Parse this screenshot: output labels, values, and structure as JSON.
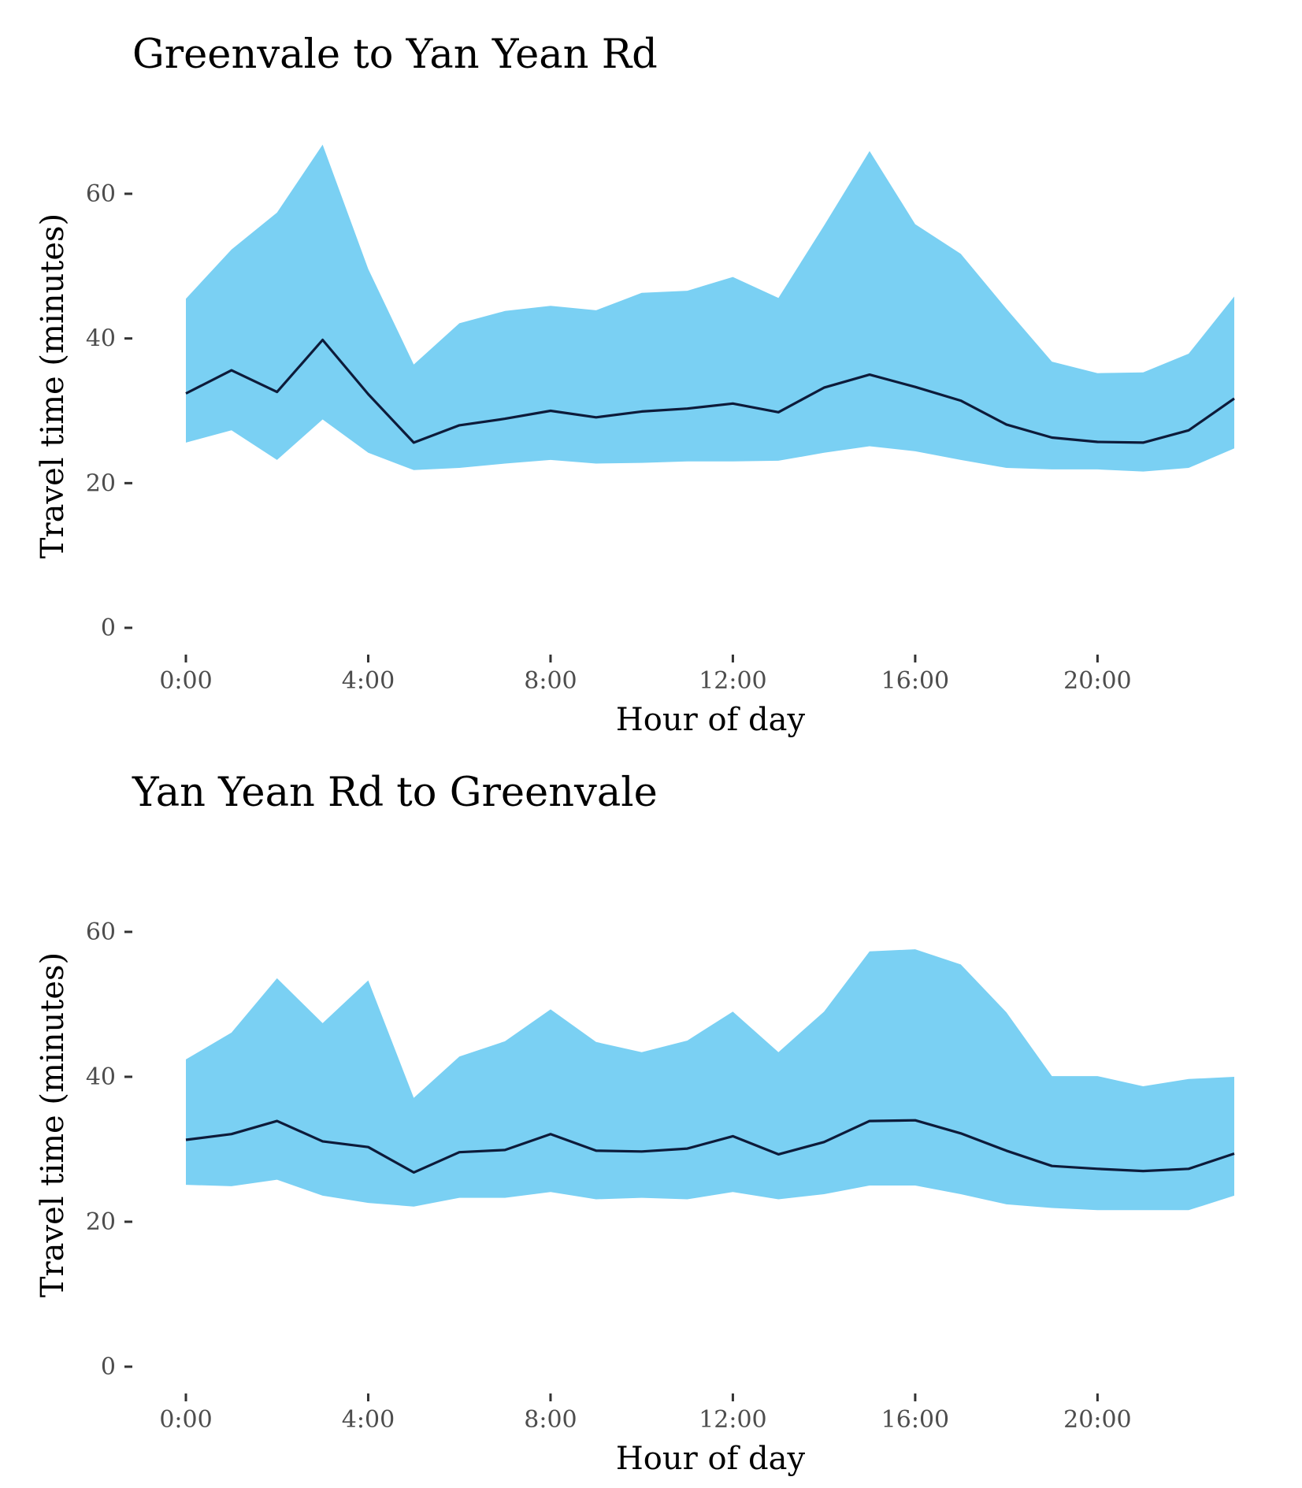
{
  "colors": {
    "band": "#7ad0f3",
    "line": "#0d1b3a",
    "tick_label": "#4d4d4d"
  },
  "chart_data": [
    {
      "type": "area",
      "title": "Greenvale to Yan Yean Rd",
      "xlabel": "Hour of day",
      "ylabel": "Travel time (minutes)",
      "xlim": [
        0,
        23
      ],
      "ylim": [
        0,
        70
      ],
      "x_ticks": [
        0,
        4,
        8,
        12,
        16,
        20
      ],
      "x_tick_labels": [
        "0:00",
        "4:00",
        "8:00",
        "12:00",
        "16:00",
        "20:00"
      ],
      "y_ticks": [
        0,
        20,
        40,
        60
      ],
      "y_tick_labels": [
        "0",
        "20",
        "40",
        "60"
      ],
      "grid": false,
      "x": [
        0,
        1,
        2,
        3,
        4,
        5,
        6,
        7,
        8,
        9,
        10,
        11,
        12,
        13,
        14,
        15,
        16,
        17,
        18,
        19,
        20,
        21,
        22,
        23
      ],
      "series": [
        {
          "role": "upper",
          "values": [
            45.5,
            52.3,
            57.4,
            66.8,
            49.6,
            36.4,
            42.1,
            43.8,
            44.5,
            43.9,
            46.3,
            46.6,
            48.5,
            45.6,
            55.6,
            65.9,
            55.8,
            51.7,
            44.1,
            36.8,
            35.2,
            35.3,
            37.9,
            45.8
          ]
        },
        {
          "role": "median",
          "values": [
            32.4,
            35.6,
            32.6,
            39.8,
            32.3,
            25.6,
            28.0,
            28.9,
            30.0,
            29.1,
            29.9,
            30.3,
            31.0,
            29.8,
            33.2,
            35.0,
            33.3,
            31.4,
            28.1,
            26.3,
            25.7,
            25.6,
            27.3,
            31.7
          ]
        },
        {
          "role": "lower",
          "values": [
            25.6,
            27.3,
            23.2,
            28.8,
            24.2,
            21.8,
            22.1,
            22.7,
            23.2,
            22.7,
            22.8,
            23.0,
            23.0,
            23.1,
            24.2,
            25.1,
            24.4,
            23.2,
            22.1,
            21.9,
            21.9,
            21.6,
            22.1,
            24.8
          ]
        }
      ]
    },
    {
      "type": "area",
      "title": "Yan Yean Rd to Greenvale",
      "xlabel": "Hour of day",
      "ylabel": "Travel time (minutes)",
      "xlim": [
        0,
        23
      ],
      "ylim": [
        0,
        70
      ],
      "x_ticks": [
        0,
        4,
        8,
        12,
        16,
        20
      ],
      "x_tick_labels": [
        "0:00",
        "4:00",
        "8:00",
        "12:00",
        "16:00",
        "20:00"
      ],
      "y_ticks": [
        0,
        20,
        40,
        60
      ],
      "y_tick_labels": [
        "0",
        "20",
        "40",
        "60"
      ],
      "grid": false,
      "x": [
        0,
        1,
        2,
        3,
        4,
        5,
        6,
        7,
        8,
        9,
        10,
        11,
        12,
        13,
        14,
        15,
        16,
        17,
        18,
        19,
        20,
        21,
        22,
        23
      ],
      "series": [
        {
          "role": "upper",
          "values": [
            42.4,
            46.1,
            53.6,
            47.4,
            53.3,
            37.1,
            42.8,
            44.9,
            49.3,
            44.8,
            43.4,
            45.0,
            49.0,
            43.4,
            49.0,
            57.3,
            57.6,
            55.5,
            48.9,
            40.1,
            40.1,
            38.7,
            39.7,
            40.0
          ]
        },
        {
          "role": "median",
          "values": [
            31.3,
            32.1,
            33.9,
            31.1,
            30.3,
            26.8,
            29.6,
            29.9,
            32.1,
            29.8,
            29.7,
            30.1,
            31.8,
            29.3,
            31.0,
            33.9,
            34.0,
            32.2,
            29.8,
            27.7,
            27.3,
            27.0,
            27.3,
            29.4
          ]
        },
        {
          "role": "lower",
          "values": [
            25.1,
            24.9,
            25.8,
            23.6,
            22.6,
            22.1,
            23.3,
            23.3,
            24.1,
            23.1,
            23.3,
            23.1,
            24.1,
            23.1,
            23.8,
            25.0,
            25.0,
            23.8,
            22.4,
            21.9,
            21.6,
            21.6,
            21.6,
            23.6
          ]
        }
      ]
    }
  ]
}
